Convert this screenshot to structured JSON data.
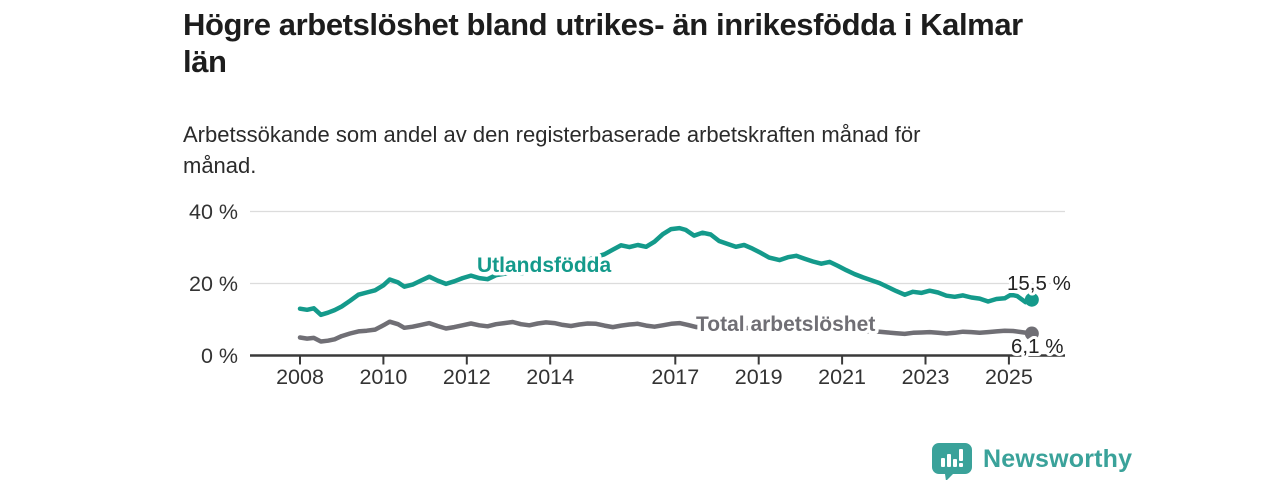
{
  "header": {
    "title": "Högre arbetslöshet bland utrikes- än inrikesfödda i Kalmar län",
    "subtitle": "Arbetssökande som andel av den registerbaserade arbetskraften månad för månad."
  },
  "chart_data": {
    "type": "line",
    "title": "",
    "xlabel": "",
    "ylabel": "",
    "ylim": [
      0,
      44
    ],
    "xlim": [
      2006.8,
      2026.3
    ],
    "grid": "horizontal",
    "x_ticks": [
      2008,
      2010,
      2012,
      2014,
      2017,
      2019,
      2021,
      2023,
      2025
    ],
    "x_tick_labels": [
      "2008",
      "2010",
      "2012",
      "2014",
      "2017",
      "2019",
      "2021",
      "2023",
      "2025"
    ],
    "y_ticks": [
      {
        "value": 0,
        "label": "0 %"
      },
      {
        "value": 20,
        "label": "20 %"
      },
      {
        "value": 40,
        "label": "40 %"
      }
    ],
    "series": [
      {
        "name": "Utlandsfödda",
        "color": "#149a8b",
        "end_label": "15,5 %",
        "end_value": 15.5,
        "points": [
          [
            2008.0,
            13.0
          ],
          [
            2008.17,
            12.7
          ],
          [
            2008.33,
            13.1
          ],
          [
            2008.5,
            11.3
          ],
          [
            2008.67,
            11.9
          ],
          [
            2008.83,
            12.6
          ],
          [
            2009.0,
            13.6
          ],
          [
            2009.2,
            15.2
          ],
          [
            2009.4,
            16.9
          ],
          [
            2009.6,
            17.5
          ],
          [
            2009.8,
            18.1
          ],
          [
            2010.0,
            19.5
          ],
          [
            2010.15,
            21.1
          ],
          [
            2010.35,
            20.3
          ],
          [
            2010.5,
            19.1
          ],
          [
            2010.7,
            19.7
          ],
          [
            2010.9,
            20.8
          ],
          [
            2011.1,
            21.9
          ],
          [
            2011.3,
            20.8
          ],
          [
            2011.5,
            19.9
          ],
          [
            2011.7,
            20.6
          ],
          [
            2011.9,
            21.5
          ],
          [
            2012.1,
            22.2
          ],
          [
            2012.3,
            21.5
          ],
          [
            2012.5,
            21.2
          ],
          [
            2012.7,
            22.3
          ],
          [
            2012.9,
            22.7
          ],
          [
            2013.1,
            23.4
          ],
          [
            2013.3,
            22.8
          ],
          [
            2013.5,
            23.4
          ],
          [
            2013.7,
            24.1
          ],
          [
            2013.9,
            24.0
          ],
          [
            2014.1,
            24.9
          ],
          [
            2014.3,
            25.4
          ],
          [
            2014.5,
            25.0
          ],
          [
            2014.7,
            25.9
          ],
          [
            2014.9,
            26.5
          ],
          [
            2015.1,
            27.4
          ],
          [
            2015.3,
            28.1
          ],
          [
            2015.5,
            29.4
          ],
          [
            2015.7,
            30.6
          ],
          [
            2015.9,
            30.1
          ],
          [
            2016.1,
            30.7
          ],
          [
            2016.3,
            30.2
          ],
          [
            2016.5,
            31.6
          ],
          [
            2016.7,
            33.7
          ],
          [
            2016.9,
            35.1
          ],
          [
            2017.1,
            35.4
          ],
          [
            2017.25,
            34.9
          ],
          [
            2017.45,
            33.3
          ],
          [
            2017.65,
            34.1
          ],
          [
            2017.85,
            33.6
          ],
          [
            2018.05,
            31.8
          ],
          [
            2018.25,
            31.0
          ],
          [
            2018.45,
            30.2
          ],
          [
            2018.65,
            30.7
          ],
          [
            2018.85,
            29.7
          ],
          [
            2019.05,
            28.5
          ],
          [
            2019.25,
            27.2
          ],
          [
            2019.5,
            26.5
          ],
          [
            2019.7,
            27.3
          ],
          [
            2019.9,
            27.7
          ],
          [
            2020.1,
            26.9
          ],
          [
            2020.3,
            26.1
          ],
          [
            2020.5,
            25.5
          ],
          [
            2020.7,
            26.0
          ],
          [
            2020.9,
            24.9
          ],
          [
            2021.1,
            23.7
          ],
          [
            2021.3,
            22.6
          ],
          [
            2021.5,
            21.7
          ],
          [
            2021.7,
            20.9
          ],
          [
            2021.9,
            20.1
          ],
          [
            2022.1,
            19.0
          ],
          [
            2022.3,
            17.9
          ],
          [
            2022.5,
            16.9
          ],
          [
            2022.7,
            17.7
          ],
          [
            2022.9,
            17.4
          ],
          [
            2023.1,
            18.0
          ],
          [
            2023.3,
            17.5
          ],
          [
            2023.5,
            16.6
          ],
          [
            2023.7,
            16.3
          ],
          [
            2023.9,
            16.7
          ],
          [
            2024.1,
            16.1
          ],
          [
            2024.3,
            15.8
          ],
          [
            2024.5,
            15.0
          ],
          [
            2024.7,
            15.7
          ],
          [
            2024.9,
            15.9
          ],
          [
            2025.05,
            16.9
          ],
          [
            2025.2,
            16.5
          ],
          [
            2025.4,
            14.8
          ],
          [
            2025.55,
            15.5
          ]
        ]
      },
      {
        "name": "Total arbetslöshet",
        "color": "#706f75",
        "end_label": "6,1 %",
        "end_value": 6.1,
        "points": [
          [
            2008.0,
            5.0
          ],
          [
            2008.17,
            4.7
          ],
          [
            2008.33,
            4.9
          ],
          [
            2008.5,
            3.9
          ],
          [
            2008.67,
            4.1
          ],
          [
            2008.83,
            4.5
          ],
          [
            2009.0,
            5.4
          ],
          [
            2009.2,
            6.1
          ],
          [
            2009.4,
            6.7
          ],
          [
            2009.6,
            6.9
          ],
          [
            2009.8,
            7.2
          ],
          [
            2010.0,
            8.4
          ],
          [
            2010.15,
            9.4
          ],
          [
            2010.35,
            8.7
          ],
          [
            2010.5,
            7.7
          ],
          [
            2010.7,
            8.0
          ],
          [
            2010.9,
            8.5
          ],
          [
            2011.1,
            9.0
          ],
          [
            2011.3,
            8.2
          ],
          [
            2011.5,
            7.5
          ],
          [
            2011.7,
            7.9
          ],
          [
            2011.9,
            8.4
          ],
          [
            2012.1,
            8.9
          ],
          [
            2012.3,
            8.4
          ],
          [
            2012.5,
            8.1
          ],
          [
            2012.7,
            8.7
          ],
          [
            2012.9,
            9.0
          ],
          [
            2013.1,
            9.3
          ],
          [
            2013.3,
            8.7
          ],
          [
            2013.5,
            8.4
          ],
          [
            2013.7,
            8.9
          ],
          [
            2013.9,
            9.2
          ],
          [
            2014.1,
            9.0
          ],
          [
            2014.3,
            8.5
          ],
          [
            2014.5,
            8.2
          ],
          [
            2014.7,
            8.6
          ],
          [
            2014.9,
            8.9
          ],
          [
            2015.1,
            8.8
          ],
          [
            2015.3,
            8.3
          ],
          [
            2015.5,
            7.9
          ],
          [
            2015.7,
            8.3
          ],
          [
            2015.9,
            8.6
          ],
          [
            2016.1,
            8.8
          ],
          [
            2016.3,
            8.3
          ],
          [
            2016.5,
            8.0
          ],
          [
            2016.7,
            8.4
          ],
          [
            2016.9,
            8.8
          ],
          [
            2017.1,
            9.0
          ],
          [
            2017.3,
            8.5
          ],
          [
            2017.5,
            7.9
          ],
          [
            2017.7,
            8.1
          ],
          [
            2017.9,
            8.3
          ],
          [
            2018.1,
            8.0
          ],
          [
            2018.3,
            7.6
          ],
          [
            2018.5,
            7.3
          ],
          [
            2018.7,
            7.6
          ],
          [
            2018.9,
            7.8
          ],
          [
            2019.1,
            7.6
          ],
          [
            2019.3,
            7.2
          ],
          [
            2019.5,
            7.0
          ],
          [
            2019.7,
            7.3
          ],
          [
            2019.9,
            7.5
          ],
          [
            2020.1,
            7.9
          ],
          [
            2020.3,
            8.3
          ],
          [
            2020.5,
            8.1
          ],
          [
            2020.7,
            7.8
          ],
          [
            2020.9,
            7.6
          ],
          [
            2021.1,
            7.4
          ],
          [
            2021.3,
            7.1
          ],
          [
            2021.5,
            6.9
          ],
          [
            2021.7,
            6.7
          ],
          [
            2021.9,
            6.6
          ],
          [
            2022.1,
            6.4
          ],
          [
            2022.3,
            6.2
          ],
          [
            2022.5,
            6.0
          ],
          [
            2022.7,
            6.3
          ],
          [
            2022.9,
            6.4
          ],
          [
            2023.1,
            6.5
          ],
          [
            2023.3,
            6.3
          ],
          [
            2023.5,
            6.1
          ],
          [
            2023.7,
            6.3
          ],
          [
            2023.9,
            6.6
          ],
          [
            2024.1,
            6.5
          ],
          [
            2024.3,
            6.3
          ],
          [
            2024.5,
            6.5
          ],
          [
            2024.7,
            6.7
          ],
          [
            2024.9,
            6.9
          ],
          [
            2025.1,
            6.8
          ],
          [
            2025.3,
            6.5
          ],
          [
            2025.55,
            6.1
          ]
        ]
      }
    ],
    "colors": {
      "grid": "#dcdcdc",
      "axis": "#3a3a3a",
      "tick_text": "#333333",
      "value_label_text": "#222222"
    }
  },
  "branding": {
    "logo_text": "Newsworthy",
    "color": "#3aa29a",
    "logo_icon": "bar-chart-speech-bubble"
  }
}
